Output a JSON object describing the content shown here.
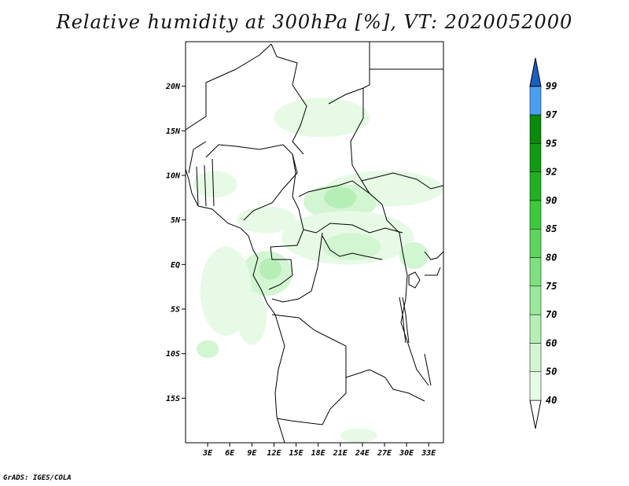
{
  "title": "Relative humidity at 300hPa [%], VT: 2020052000",
  "credit": "GrADS: IGES/COLA",
  "map": {
    "lon_range": [
      0,
      35
    ],
    "lat_range": [
      -20,
      25
    ],
    "lat_ticks": [
      {
        "value": 20,
        "label": "20N"
      },
      {
        "value": 15,
        "label": "15N"
      },
      {
        "value": 10,
        "label": "10N"
      },
      {
        "value": 5,
        "label": "5N"
      },
      {
        "value": 0,
        "label": "EQ"
      },
      {
        "value": -5,
        "label": "5S"
      },
      {
        "value": -10,
        "label": "10S"
      },
      {
        "value": -15,
        "label": "15S"
      }
    ],
    "lon_ticks": [
      {
        "value": 3,
        "label": "3E"
      },
      {
        "value": 6,
        "label": "6E"
      },
      {
        "value": 9,
        "label": "9E"
      },
      {
        "value": 12,
        "label": "12E"
      },
      {
        "value": 15,
        "label": "15E"
      },
      {
        "value": 18,
        "label": "18E"
      },
      {
        "value": 21,
        "label": "21E"
      },
      {
        "value": 24,
        "label": "24E"
      },
      {
        "value": 27,
        "label": "27E"
      },
      {
        "value": 30,
        "label": "30E"
      },
      {
        "value": 33,
        "label": "33E"
      }
    ]
  },
  "colorbar": {
    "levels": [
      {
        "label": "40",
        "color": "#e6fae6"
      },
      {
        "label": "50",
        "color": "#d2f5d2"
      },
      {
        "label": "60",
        "color": "#b6efb6"
      },
      {
        "label": "70",
        "color": "#9ae99a"
      },
      {
        "label": "75",
        "color": "#7ee07e"
      },
      {
        "label": "80",
        "color": "#5ed65e"
      },
      {
        "label": "85",
        "color": "#3cc93c"
      },
      {
        "label": "90",
        "color": "#22b022"
      },
      {
        "label": "92",
        "color": "#129a12"
      },
      {
        "label": "95",
        "color": "#0a8a0a"
      },
      {
        "label": "97",
        "color": "#4a9ff0"
      },
      {
        "label": "99",
        "color": "#2a78dc"
      }
    ],
    "top_color": "#1a5fc4"
  },
  "humidity_areas": [
    {
      "name": "sahel-north",
      "level": "40",
      "lon": 18.5,
      "lat": 16.5,
      "rlon": 6.5,
      "rlat": 2.2
    },
    {
      "name": "central-band-east",
      "level": "40",
      "lon": 27,
      "lat": 8.5,
      "rlon": 8,
      "rlat": 2
    },
    {
      "name": "central-band-mid",
      "level": "50",
      "lon": 21,
      "lat": 7,
      "rlon": 5,
      "rlat": 2
    },
    {
      "name": "central-band-core",
      "level": "60",
      "lon": 21,
      "lat": 7.5,
      "rlon": 2.2,
      "rlat": 1.2
    },
    {
      "name": "congo-north",
      "level": "40",
      "lon": 22,
      "lat": 3,
      "rlon": 9,
      "rlat": 3
    },
    {
      "name": "congo-core",
      "level": "50",
      "lon": 22.5,
      "lat": 2,
      "rlon": 4,
      "rlat": 1.5
    },
    {
      "name": "gabon-coast",
      "level": "50",
      "lon": 11,
      "lat": -1,
      "rlon": 3.5,
      "rlat": 2.5
    },
    {
      "name": "gabon-core",
      "level": "60",
      "lon": 11.5,
      "lat": -0.5,
      "rlon": 1.5,
      "rlat": 1.2
    },
    {
      "name": "cameroon",
      "level": "40",
      "lon": 11,
      "lat": 5,
      "rlon": 4,
      "rlat": 1.5
    },
    {
      "name": "west-coast",
      "level": "40",
      "lon": 4,
      "lat": 9,
      "rlon": 3,
      "rlat": 1.5
    },
    {
      "name": "offshore-south",
      "level": "40",
      "lon": 5.5,
      "lat": -3,
      "rlon": 3.5,
      "rlat": 5
    },
    {
      "name": "angola-offshore",
      "level": "50",
      "lon": 3,
      "lat": -9.5,
      "rlon": 1.5,
      "rlat": 1
    },
    {
      "name": "angola-coast",
      "level": "40",
      "lon": 9,
      "lat": -6,
      "rlon": 2,
      "rlat": 3
    },
    {
      "name": "east-lakes",
      "level": "50",
      "lon": 31,
      "lat": 1,
      "rlon": 2,
      "rlat": 1.5
    },
    {
      "name": "south-edge",
      "level": "40",
      "lon": 23.5,
      "lat": -19.2,
      "rlon": 2.5,
      "rlat": 0.8
    }
  ]
}
